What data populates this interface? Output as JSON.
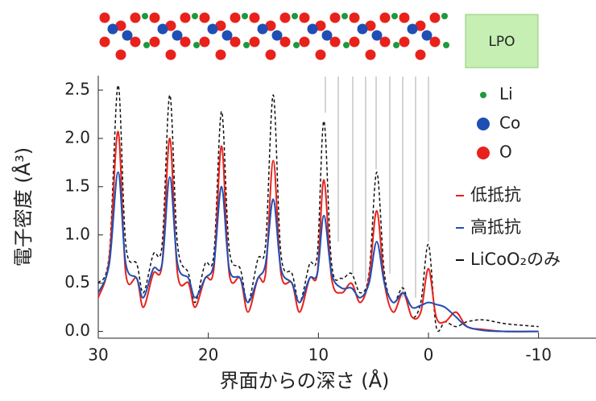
{
  "chart_data": {
    "type": "line",
    "x_label": "界面からの深さ (Å)",
    "y_label": "電子密度 (Å³)",
    "structure_label": "LPO",
    "atom_legend": [
      {
        "name": "Li",
        "color": "#1e9a3c"
      },
      {
        "name": "Co",
        "color": "#1f4fb4"
      },
      {
        "name": "O",
        "color": "#e8221b"
      }
    ],
    "x": [
      30,
      29,
      28.2,
      27.5,
      26.5,
      25.9,
      25,
      24.2,
      23.5,
      22.8,
      21.8,
      21.2,
      20.3,
      19.5,
      18.8,
      18.1,
      17.1,
      16.4,
      15.5,
      14.8,
      14.1,
      13.4,
      12.4,
      11.7,
      10.8,
      10.1,
      9.5,
      8.8,
      7.9,
      7,
      6.2,
      5.4,
      4.7,
      4,
      3.2,
      2.3,
      1.5,
      0.7,
      0,
      -0.7,
      -1.5,
      -2.5,
      -3.5,
      -5,
      -7,
      -10
    ],
    "series": [
      {
        "name": "低抵抗",
        "color": "#e8221b",
        "dashed": false,
        "values": [
          0.35,
          0.75,
          2.07,
          0.6,
          0.55,
          0.25,
          0.6,
          0.7,
          2.0,
          0.6,
          0.5,
          0.25,
          0.55,
          0.65,
          1.92,
          0.6,
          0.55,
          0.2,
          0.55,
          0.6,
          1.77,
          0.6,
          0.5,
          0.2,
          0.55,
          0.6,
          1.57,
          0.55,
          0.4,
          0.5,
          0.3,
          0.55,
          1.25,
          0.5,
          0.2,
          0.4,
          0.15,
          0.2,
          0.65,
          0.15,
          0.1,
          0.2,
          0.05,
          0.02,
          0,
          0
        ]
      },
      {
        "name": "高抵抗",
        "color": "#1f4fb4",
        "dashed": false,
        "values": [
          0.4,
          0.7,
          1.65,
          0.7,
          0.55,
          0.35,
          0.65,
          0.7,
          1.6,
          0.7,
          0.55,
          0.35,
          0.55,
          0.7,
          1.5,
          0.65,
          0.55,
          0.3,
          0.55,
          0.7,
          1.37,
          0.65,
          0.5,
          0.3,
          0.55,
          0.6,
          1.2,
          0.6,
          0.45,
          0.45,
          0.35,
          0.5,
          0.93,
          0.5,
          0.3,
          0.4,
          0.25,
          0.27,
          0.3,
          0.28,
          0.25,
          0.15,
          0.05,
          0.01,
          0,
          0
        ]
      },
      {
        "name": "LiCoO₂のみ",
        "color": "#111111",
        "dashed": true,
        "values": [
          0.5,
          0.8,
          2.55,
          0.9,
          0.7,
          0.4,
          0.8,
          0.9,
          2.45,
          0.9,
          0.6,
          0.3,
          0.7,
          0.8,
          2.28,
          0.85,
          0.65,
          0.3,
          0.75,
          0.9,
          2.45,
          0.8,
          0.6,
          0.3,
          0.7,
          0.8,
          2.18,
          0.7,
          0.55,
          0.6,
          0.4,
          0.6,
          1.65,
          0.6,
          0.3,
          0.45,
          0.15,
          0.3,
          0.9,
          0.05,
          0.1,
          0.05,
          0.1,
          0.12,
          0.08,
          0.05
        ]
      }
    ],
    "xlim": [
      30,
      -15
    ],
    "ylim": [
      -0.07,
      2.65
    ],
    "xticks": [
      30,
      20,
      10,
      0,
      -10
    ],
    "yticks": [
      {
        "value": 0,
        "label": "0.0"
      },
      0.5,
      {
        "value": 1,
        "label": "1.0"
      },
      1.5,
      {
        "value": 2,
        "label": "2.0"
      },
      2.5
    ]
  }
}
